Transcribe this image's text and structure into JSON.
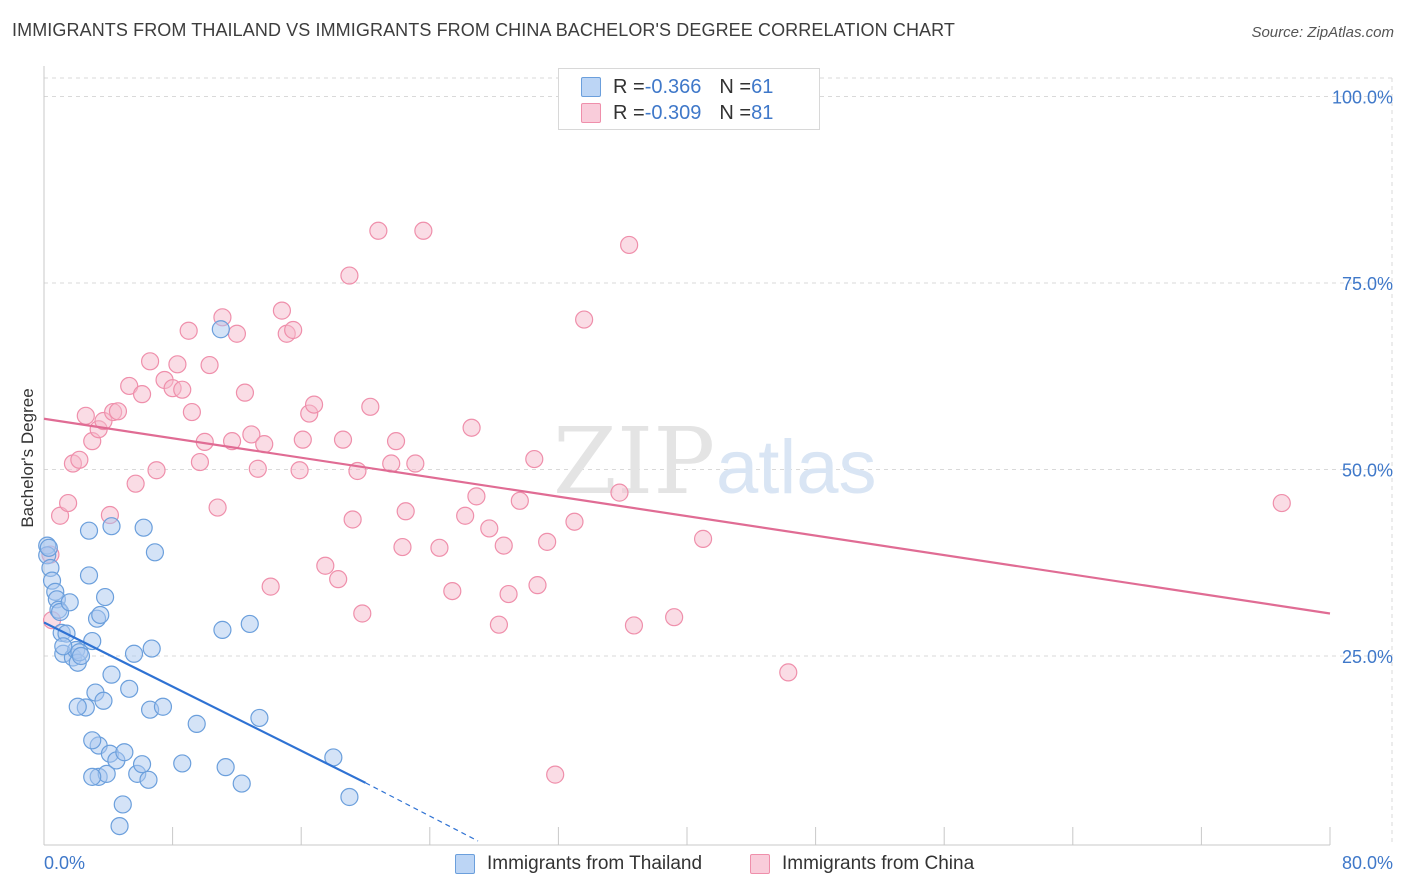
{
  "header": {
    "title": "IMMIGRANTS FROM THAILAND VS IMMIGRANTS FROM CHINA BACHELOR'S DEGREE CORRELATION CHART",
    "source": "Source: ZipAtlas.com"
  },
  "legend": {
    "series1": {
      "r_label": "R = ",
      "r_value": "-0.366",
      "n_label": "N = ",
      "n_value": "61"
    },
    "series2": {
      "r_label": "R = ",
      "r_value": "-0.309",
      "n_label": "N = ",
      "n_value": "81"
    }
  },
  "watermark": {
    "part1": "ZIP",
    "part2": "atlas"
  },
  "colors": {
    "thailand_fill": "#a9c8f0",
    "thailand_stroke": "#6b9fdc",
    "thailand_line": "#2f72d3",
    "china_fill": "#f6b9cb",
    "china_stroke": "#ef8fab",
    "china_line": "#e06c94",
    "axis_text": "#3f78c9",
    "grid": "#d9d9d9"
  },
  "chart_data": {
    "type": "scatter",
    "title": "IMMIGRANTS FROM THAILAND VS IMMIGRANTS FROM CHINA BACHELOR'S DEGREE CORRELATION CHART",
    "xlabel": "",
    "ylabel": "Bachelor's Degree",
    "xlim": [
      0,
      80
    ],
    "ylim": [
      0,
      100
    ],
    "x_tick_labels": [
      "0.0%",
      "80.0%"
    ],
    "y_tick_labels": [
      "25.0%",
      "50.0%",
      "75.0%",
      "100.0%"
    ],
    "y_ticks": [
      25,
      50,
      75,
      100
    ],
    "grid": true,
    "legend_position": "top-center",
    "series": [
      {
        "name": "Immigrants from Thailand",
        "r": -0.366,
        "n": 61,
        "trend": {
          "x": [
            0,
            20
          ],
          "y": [
            29.5,
            8.0
          ],
          "dashed_to": [
            27,
            0.2
          ]
        },
        "points": [
          [
            0.2,
            39.8
          ],
          [
            0.2,
            38.5
          ],
          [
            0.4,
            36.8
          ],
          [
            0.5,
            35.1
          ],
          [
            0.7,
            33.6
          ],
          [
            0.8,
            32.6
          ],
          [
            0.9,
            31.2
          ],
          [
            1.0,
            30.9
          ],
          [
            1.1,
            28.1
          ],
          [
            1.2,
            25.3
          ],
          [
            1.4,
            28.0
          ],
          [
            1.6,
            32.2
          ],
          [
            1.8,
            24.8
          ],
          [
            2.0,
            25.8
          ],
          [
            2.1,
            24.1
          ],
          [
            2.2,
            25.5
          ],
          [
            2.3,
            25.0
          ],
          [
            2.8,
            35.8
          ],
          [
            2.8,
            41.8
          ],
          [
            3.0,
            27.0
          ],
          [
            3.2,
            20.1
          ],
          [
            3.4,
            13.0
          ],
          [
            3.3,
            30.0
          ],
          [
            3.5,
            30.5
          ],
          [
            3.7,
            19.0
          ],
          [
            3.8,
            32.9
          ],
          [
            4.2,
            22.5
          ],
          [
            2.6,
            18.1
          ],
          [
            3.0,
            13.7
          ],
          [
            3.4,
            8.8
          ],
          [
            3.9,
            9.2
          ],
          [
            4.1,
            11.9
          ],
          [
            4.5,
            11.0
          ],
          [
            4.9,
            5.1
          ],
          [
            4.7,
            2.2
          ],
          [
            5.0,
            12.1
          ],
          [
            5.3,
            20.6
          ],
          [
            5.6,
            25.3
          ],
          [
            5.8,
            9.2
          ],
          [
            6.1,
            10.5
          ],
          [
            6.5,
            8.4
          ],
          [
            6.6,
            17.8
          ],
          [
            6.7,
            26.0
          ],
          [
            6.9,
            38.9
          ],
          [
            7.4,
            18.2
          ],
          [
            8.6,
            10.6
          ],
          [
            9.5,
            15.9
          ],
          [
            11.1,
            28.5
          ],
          [
            11.3,
            10.1
          ],
          [
            12.3,
            7.9
          ],
          [
            12.8,
            29.3
          ],
          [
            13.4,
            16.7
          ],
          [
            6.2,
            42.2
          ],
          [
            4.2,
            42.4
          ],
          [
            18.0,
            11.4
          ],
          [
            19.0,
            6.1
          ],
          [
            11.0,
            68.8
          ],
          [
            0.3,
            39.5
          ],
          [
            1.2,
            26.3
          ],
          [
            2.1,
            18.2
          ],
          [
            3.0,
            8.8
          ]
        ]
      },
      {
        "name": "Immigrants from China",
        "r": -0.309,
        "n": 81,
        "trend": {
          "x": [
            0,
            80
          ],
          "y": [
            56.8,
            30.7
          ]
        },
        "points": [
          [
            0.4,
            38.6
          ],
          [
            0.5,
            29.8
          ],
          [
            1.0,
            43.8
          ],
          [
            1.5,
            45.5
          ],
          [
            1.8,
            50.8
          ],
          [
            2.2,
            51.3
          ],
          [
            2.6,
            57.2
          ],
          [
            3.0,
            53.8
          ],
          [
            3.4,
            55.4
          ],
          [
            3.7,
            56.5
          ],
          [
            4.1,
            43.9
          ],
          [
            4.3,
            57.7
          ],
          [
            4.6,
            57.8
          ],
          [
            5.3,
            61.2
          ],
          [
            5.7,
            48.1
          ],
          [
            6.1,
            60.1
          ],
          [
            6.6,
            64.5
          ],
          [
            7.0,
            49.9
          ],
          [
            7.5,
            62.0
          ],
          [
            8.0,
            60.9
          ],
          [
            8.3,
            64.1
          ],
          [
            8.6,
            60.7
          ],
          [
            9.0,
            68.6
          ],
          [
            9.2,
            57.7
          ],
          [
            9.7,
            51.0
          ],
          [
            10.0,
            53.7
          ],
          [
            10.3,
            64.0
          ],
          [
            10.8,
            44.9
          ],
          [
            11.1,
            70.4
          ],
          [
            11.7,
            53.8
          ],
          [
            12.0,
            68.2
          ],
          [
            12.5,
            60.3
          ],
          [
            12.9,
            54.7
          ],
          [
            13.3,
            50.1
          ],
          [
            13.7,
            53.4
          ],
          [
            14.1,
            34.3
          ],
          [
            14.8,
            71.3
          ],
          [
            15.1,
            68.2
          ],
          [
            15.5,
            68.7
          ],
          [
            15.9,
            49.9
          ],
          [
            16.1,
            54.0
          ],
          [
            16.5,
            57.5
          ],
          [
            16.8,
            58.7
          ],
          [
            17.5,
            37.1
          ],
          [
            18.3,
            35.3
          ],
          [
            18.6,
            54.0
          ],
          [
            19.0,
            76.0
          ],
          [
            19.2,
            43.3
          ],
          [
            19.5,
            49.8
          ],
          [
            19.8,
            30.7
          ],
          [
            20.3,
            58.4
          ],
          [
            20.8,
            82.0
          ],
          [
            21.6,
            50.8
          ],
          [
            21.9,
            53.8
          ],
          [
            22.3,
            39.6
          ],
          [
            22.5,
            44.4
          ],
          [
            23.1,
            50.8
          ],
          [
            23.6,
            82.0
          ],
          [
            24.6,
            39.5
          ],
          [
            25.4,
            33.7
          ],
          [
            26.6,
            55.6
          ],
          [
            26.2,
            43.8
          ],
          [
            26.9,
            46.4
          ],
          [
            27.7,
            42.1
          ],
          [
            28.3,
            29.2
          ],
          [
            28.6,
            39.8
          ],
          [
            28.9,
            33.3
          ],
          [
            29.6,
            45.8
          ],
          [
            30.5,
            51.4
          ],
          [
            30.7,
            34.5
          ],
          [
            31.3,
            40.3
          ],
          [
            31.8,
            9.1
          ],
          [
            33.0,
            43.0
          ],
          [
            33.6,
            70.1
          ],
          [
            35.8,
            46.9
          ],
          [
            36.4,
            80.1
          ],
          [
            36.7,
            29.1
          ],
          [
            39.2,
            30.2
          ],
          [
            41.0,
            40.7
          ],
          [
            46.3,
            22.8
          ],
          [
            77.0,
            45.5
          ]
        ]
      }
    ]
  },
  "bottom_legend": {
    "item1": "Immigrants from Thailand",
    "item2": "Immigrants from China"
  }
}
